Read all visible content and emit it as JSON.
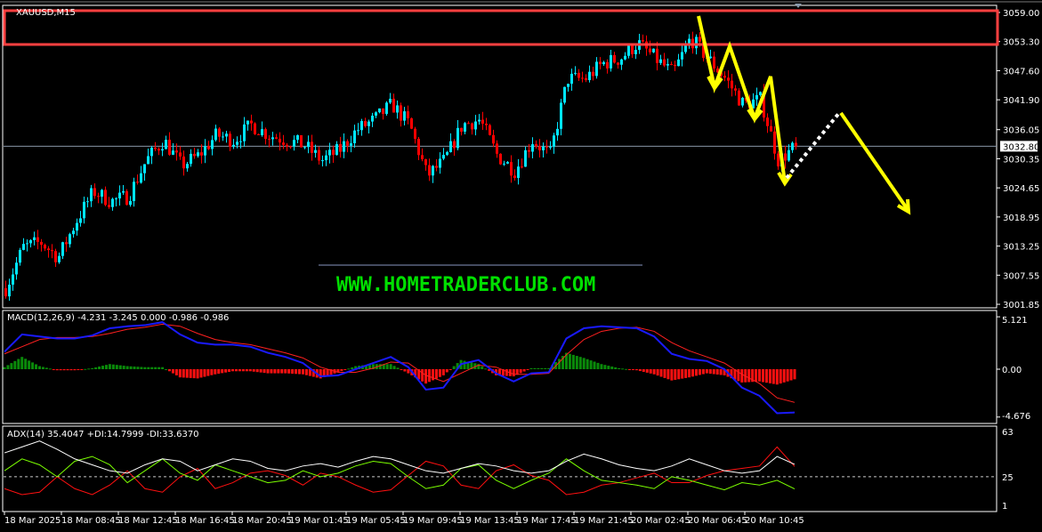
{
  "header": {
    "symbol_title": "XAUUSD,M15"
  },
  "watermark": {
    "text": "WWW.HOMETRADERCLUB.COM",
    "color": "#00e000"
  },
  "colors": {
    "bull": "#00e5ff",
    "bear": "#ff0000",
    "macd_main": "#1a1aff",
    "macd_signal": "#ff2020",
    "hist_pos": "#0a8a0a",
    "hist_neg": "#ff1010",
    "adx": "#ffffff",
    "plus_di": "#7cff00",
    "minus_di": "#ff1010",
    "zone": "#ff4040",
    "annotation": "#ffff00"
  },
  "chart_data": [
    {
      "type": "candlestick",
      "title": "XAUUSD,M15",
      "current_price": "3032.80",
      "y_ticks": [
        "3059.00",
        "3053.30",
        "3047.60",
        "3041.90",
        "3036.05",
        "3030.35",
        "3024.65",
        "3018.95",
        "3013.25",
        "3007.55",
        "3001.85"
      ],
      "ylim": [
        3001.3,
        3061.4
      ],
      "x_ticks": [
        "18 Mar 2025",
        "18 Mar 08:45",
        "18 Mar 12:45",
        "18 Mar 16:45",
        "18 Mar 20:45",
        "19 Mar 01:45",
        "19 Mar 05:45",
        "19 Mar 09:45",
        "19 Mar 13:45",
        "19 Mar 17:45",
        "19 Mar 21:45",
        "20 Mar 02:45",
        "20 Mar 06:45",
        "20 Mar 10:45"
      ],
      "approx_close_path": [
        3005,
        3013,
        3014,
        3011,
        3018,
        3024,
        3022,
        3023,
        3030,
        3034,
        3029,
        3031,
        3035,
        3034,
        3037,
        3035,
        3034,
        3033,
        3030,
        3032,
        3036,
        3038,
        3041,
        3037,
        3027,
        3030,
        3037,
        3038,
        3031,
        3028,
        3034,
        3031,
        3046,
        3046,
        3049,
        3050,
        3053,
        3050,
        3047,
        3054,
        3050,
        3046,
        3041,
        3042,
        3030,
        3032.8
      ],
      "resistance_zone": [
        3052.7,
        3059.4
      ],
      "annotations": [
        "zigzag-down-arrows",
        "dotted-retrace",
        "projected-down-arrow"
      ]
    },
    {
      "type": "line",
      "title": "MACD(12,26,9) -4.231 -3.245 0.000 -0.986 -0.986",
      "y_ticks": [
        "5.121",
        "0.00",
        "-4.676"
      ],
      "ylim": [
        -4.676,
        5.121
      ],
      "series": [
        {
          "name": "MACD",
          "values": [
            1.7,
            3.4,
            3.2,
            3.0,
            3.0,
            3.3,
            4.0,
            4.2,
            4.3,
            4.6,
            3.4,
            2.6,
            2.4,
            2.4,
            2.2,
            1.6,
            1.2,
            0.6,
            -0.7,
            -0.6,
            0.0,
            0.6,
            1.2,
            0.2,
            -2.0,
            -1.8,
            0.5,
            0.9,
            -0.4,
            -1.2,
            -0.4,
            -0.3,
            3.0,
            4.0,
            4.2,
            4.1,
            4.0,
            3.2,
            1.5,
            1.0,
            0.8,
            0.0,
            -1.8,
            -2.6,
            -4.3,
            -4.231
          ]
        },
        {
          "name": "Signal",
          "values": [
            1.5,
            2.2,
            2.9,
            3.1,
            3.1,
            3.2,
            3.5,
            3.9,
            4.1,
            4.4,
            4.2,
            3.5,
            2.9,
            2.6,
            2.4,
            2.0,
            1.6,
            1.1,
            0.2,
            -0.3,
            -0.3,
            0.1,
            0.7,
            0.6,
            -0.6,
            -1.2,
            -0.4,
            0.4,
            0.2,
            -0.5,
            -0.5,
            -0.4,
            1.4,
            2.9,
            3.7,
            4.0,
            4.1,
            3.7,
            2.6,
            1.8,
            1.2,
            0.6,
            -0.5,
            -1.4,
            -2.8,
            -3.245
          ]
        }
      ]
    },
    {
      "type": "line",
      "title": "ADX(14) 35.4047 +DI:14.7999 -DI:33.6370",
      "y_ticks": [
        "63",
        "25",
        "1"
      ],
      "ylim": [
        1,
        63
      ],
      "level": 25,
      "series": [
        {
          "name": "ADX",
          "values": [
            45,
            50,
            55,
            48,
            40,
            35,
            30,
            28,
            35,
            40,
            38,
            30,
            35,
            40,
            38,
            32,
            30,
            34,
            36,
            33,
            38,
            42,
            40,
            35,
            30,
            28,
            32,
            36,
            34,
            30,
            28,
            30,
            38,
            44,
            40,
            35,
            32,
            30,
            34,
            40,
            35,
            30,
            28,
            30,
            42,
            35.4
          ]
        },
        {
          "name": "+DI",
          "values": [
            30,
            40,
            35,
            25,
            38,
            42,
            35,
            20,
            30,
            40,
            28,
            22,
            35,
            30,
            25,
            20,
            22,
            30,
            25,
            28,
            34,
            38,
            36,
            25,
            15,
            18,
            32,
            35,
            22,
            15,
            22,
            28,
            40,
            30,
            22,
            20,
            18,
            15,
            25,
            22,
            18,
            14,
            20,
            18,
            22,
            14.8
          ]
        },
        {
          "name": "-DI",
          "values": [
            15,
            10,
            12,
            25,
            15,
            10,
            18,
            30,
            15,
            12,
            25,
            32,
            15,
            20,
            28,
            30,
            26,
            18,
            28,
            25,
            18,
            12,
            14,
            26,
            38,
            34,
            18,
            15,
            30,
            35,
            26,
            22,
            10,
            12,
            18,
            20,
            24,
            28,
            20,
            20,
            26,
            30,
            32,
            34,
            50,
            33.6
          ]
        }
      ]
    }
  ]
}
